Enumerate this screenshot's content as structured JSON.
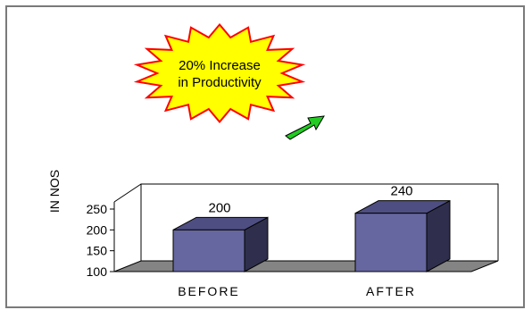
{
  "chart_data": {
    "type": "bar",
    "three_d": true,
    "categories": [
      "BEFORE",
      "AFTER"
    ],
    "values": [
      200,
      240
    ],
    "data_labels": [
      "200",
      "240"
    ],
    "ylabel": "IN NOS",
    "ylim": [
      100,
      250
    ],
    "yticks": [
      "100",
      "150",
      "200",
      "250"
    ],
    "grid": false,
    "legend": "none",
    "annotation": [
      "20% Increase",
      "in Productivity"
    ],
    "colors": {
      "bar_front": "#6666a0",
      "bar_top": "#4e4e82",
      "bar_side": "#2f2f4d",
      "floor": "#848484",
      "starburst_fill": "#ffff00",
      "starburst_stroke": "#ff0000",
      "arrow": "#22cc22"
    }
  }
}
